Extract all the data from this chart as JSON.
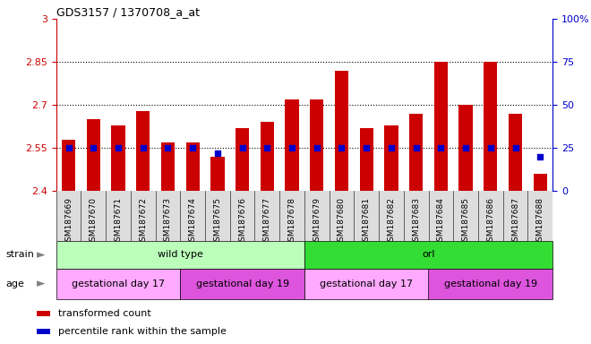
{
  "title": "GDS3157 / 1370708_a_at",
  "samples": [
    "GSM187669",
    "GSM187670",
    "GSM187671",
    "GSM187672",
    "GSM187673",
    "GSM187674",
    "GSM187675",
    "GSM187676",
    "GSM187677",
    "GSM187678",
    "GSM187679",
    "GSM187680",
    "GSM187681",
    "GSM187682",
    "GSM187683",
    "GSM187684",
    "GSM187685",
    "GSM187686",
    "GSM187687",
    "GSM187688"
  ],
  "transformed_counts": [
    2.58,
    2.65,
    2.63,
    2.68,
    2.57,
    2.57,
    2.52,
    2.62,
    2.64,
    2.72,
    2.72,
    2.82,
    2.62,
    2.63,
    2.67,
    2.85,
    2.7,
    2.85,
    2.67,
    2.46
  ],
  "percentile_ranks": [
    25,
    25,
    25,
    25,
    25,
    25,
    22,
    25,
    25,
    25,
    25,
    25,
    25,
    25,
    25,
    25,
    25,
    25,
    25,
    20
  ],
  "bar_bottom": 2.4,
  "ylim_left": [
    2.4,
    3.0
  ],
  "ylim_right": [
    0,
    100
  ],
  "yticks_left": [
    2.4,
    2.55,
    2.7,
    2.85,
    3.0
  ],
  "ytick_labels_left": [
    "2.4",
    "2.55",
    "2.7",
    "2.85",
    "3"
  ],
  "yticks_right": [
    0,
    25,
    50,
    75,
    100
  ],
  "ytick_labels_right": [
    "0",
    "25",
    "50",
    "75",
    "100%"
  ],
  "hlines": [
    2.55,
    2.7,
    2.85
  ],
  "bar_color": "#cc0000",
  "dot_color": "#0000cc",
  "left_axis_color": "#cc0000",
  "right_axis_color": "#0000cc",
  "strain_groups": [
    {
      "label": "wild type",
      "start": 0,
      "end": 10,
      "color": "#bbffbb"
    },
    {
      "label": "orl",
      "start": 10,
      "end": 20,
      "color": "#33dd33"
    }
  ],
  "age_groups": [
    {
      "label": "gestational day 17",
      "start": 0,
      "end": 5,
      "color": "#ffaaff"
    },
    {
      "label": "gestational day 19",
      "start": 5,
      "end": 10,
      "color": "#dd55dd"
    },
    {
      "label": "gestational day 17",
      "start": 10,
      "end": 15,
      "color": "#ffaaff"
    },
    {
      "label": "gestational day 19",
      "start": 15,
      "end": 20,
      "color": "#dd55dd"
    }
  ],
  "legend": [
    {
      "label": "transformed count",
      "color": "#cc0000"
    },
    {
      "label": "percentile rank within the sample",
      "color": "#0000cc"
    }
  ],
  "bar_width": 0.55,
  "dot_size": 25,
  "xtick_bg": "#dddddd",
  "label_fontsize": 8,
  "xtick_fontsize": 6.5
}
